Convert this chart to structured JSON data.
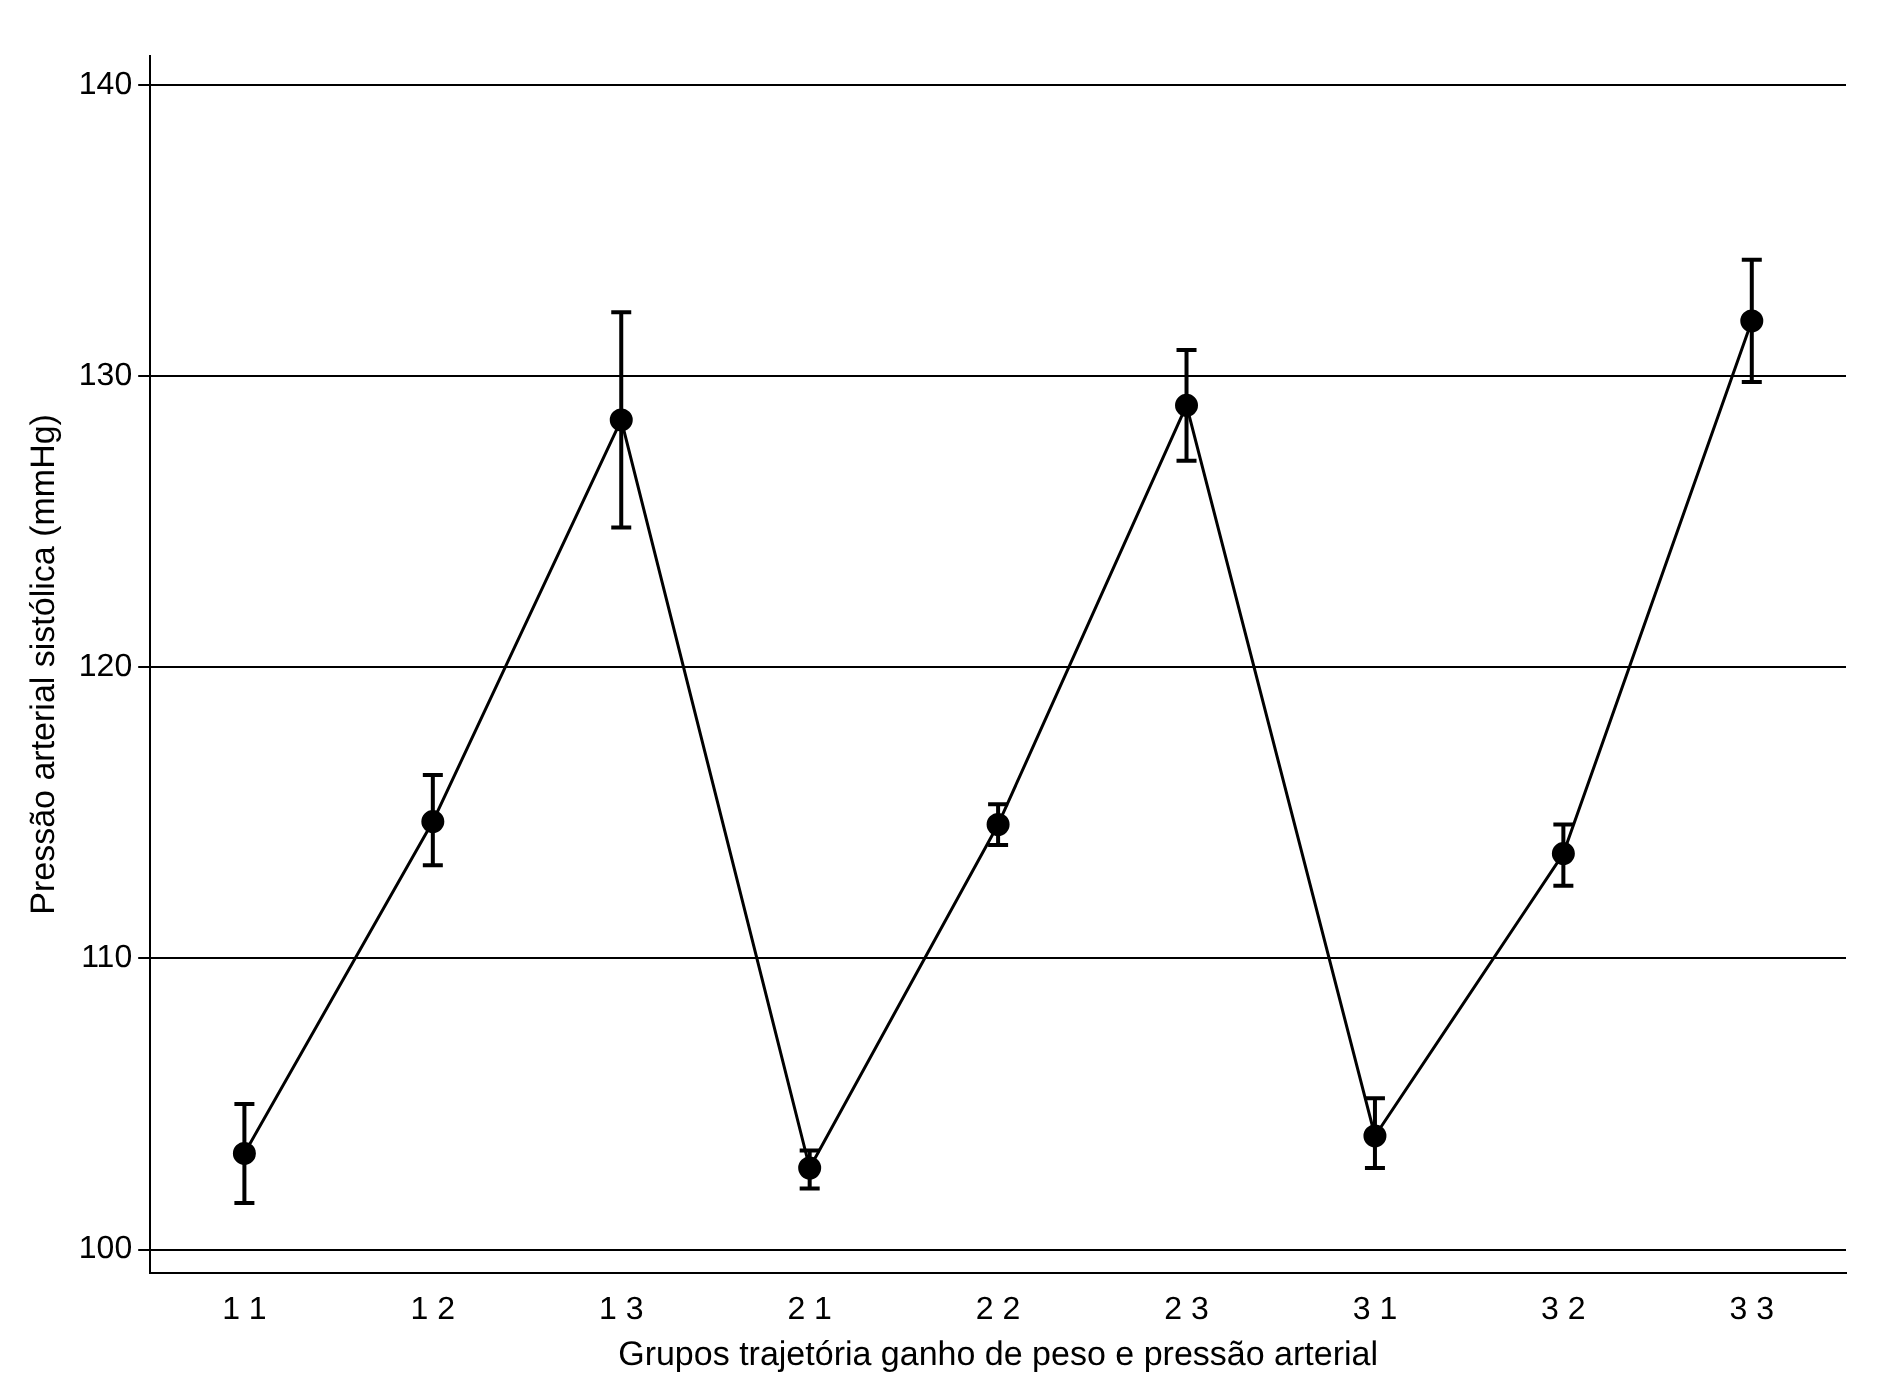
{
  "chart_data": {
    "type": "line",
    "xlabel": "Grupos trajetória ganho de peso e pressão arterial",
    "ylabel": "Pressão arterial sistólica (mmHg)",
    "categories": [
      "1 1",
      "1 2",
      "1 3",
      "2 1",
      "2 2",
      "2 3",
      "3 1",
      "3 2",
      "3 3"
    ],
    "values": [
      103.3,
      114.7,
      128.5,
      102.8,
      114.6,
      129.0,
      103.9,
      113.6,
      131.9
    ],
    "errors": [
      [
        101.6,
        105.0
      ],
      [
        113.2,
        116.3
      ],
      [
        124.8,
        132.2
      ],
      [
        102.1,
        103.4
      ],
      [
        113.9,
        115.3
      ],
      [
        127.1,
        130.9
      ],
      [
        102.8,
        105.2
      ],
      [
        112.5,
        114.6
      ],
      [
        129.8,
        134.0
      ]
    ],
    "color": "#000000",
    "marker": "circle",
    "line_style": "solid",
    "ylim": [
      99.2,
      141
    ],
    "yticks": [
      100,
      110,
      120,
      130,
      140
    ],
    "grid": "y",
    "legend": false
  }
}
